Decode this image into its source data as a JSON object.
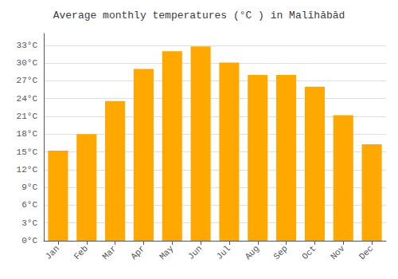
{
  "chart_data": {
    "type": "bar",
    "title": "Average monthly temperatures (°C ) in Malīhābād",
    "categories": [
      "Jan",
      "Feb",
      "Mar",
      "Apr",
      "May",
      "Jun",
      "Jul",
      "Aug",
      "Sep",
      "Oct",
      "Nov",
      "Dec"
    ],
    "values": [
      15.2,
      18.0,
      23.6,
      29.0,
      32.0,
      32.8,
      30.1,
      28.0,
      28.0,
      26.0,
      21.2,
      16.3
    ],
    "color": "#FFA800",
    "ylim": [
      0,
      35
    ],
    "yticks": [
      {
        "value": 0,
        "label": "0°C"
      },
      {
        "value": 3,
        "label": "3°C"
      },
      {
        "value": 6,
        "label": "6°C"
      },
      {
        "value": 9,
        "label": "9°C"
      },
      {
        "value": 12,
        "label": "12°C"
      },
      {
        "value": 15,
        "label": "15°C"
      },
      {
        "value": 18,
        "label": "18°C"
      },
      {
        "value": 21,
        "label": "21°C"
      },
      {
        "value": 24,
        "label": "24°C"
      },
      {
        "value": 27,
        "label": "27°C"
      },
      {
        "value": 30,
        "label": "30°C"
      },
      {
        "value": 33,
        "label": "33°C"
      }
    ],
    "grid": true
  }
}
